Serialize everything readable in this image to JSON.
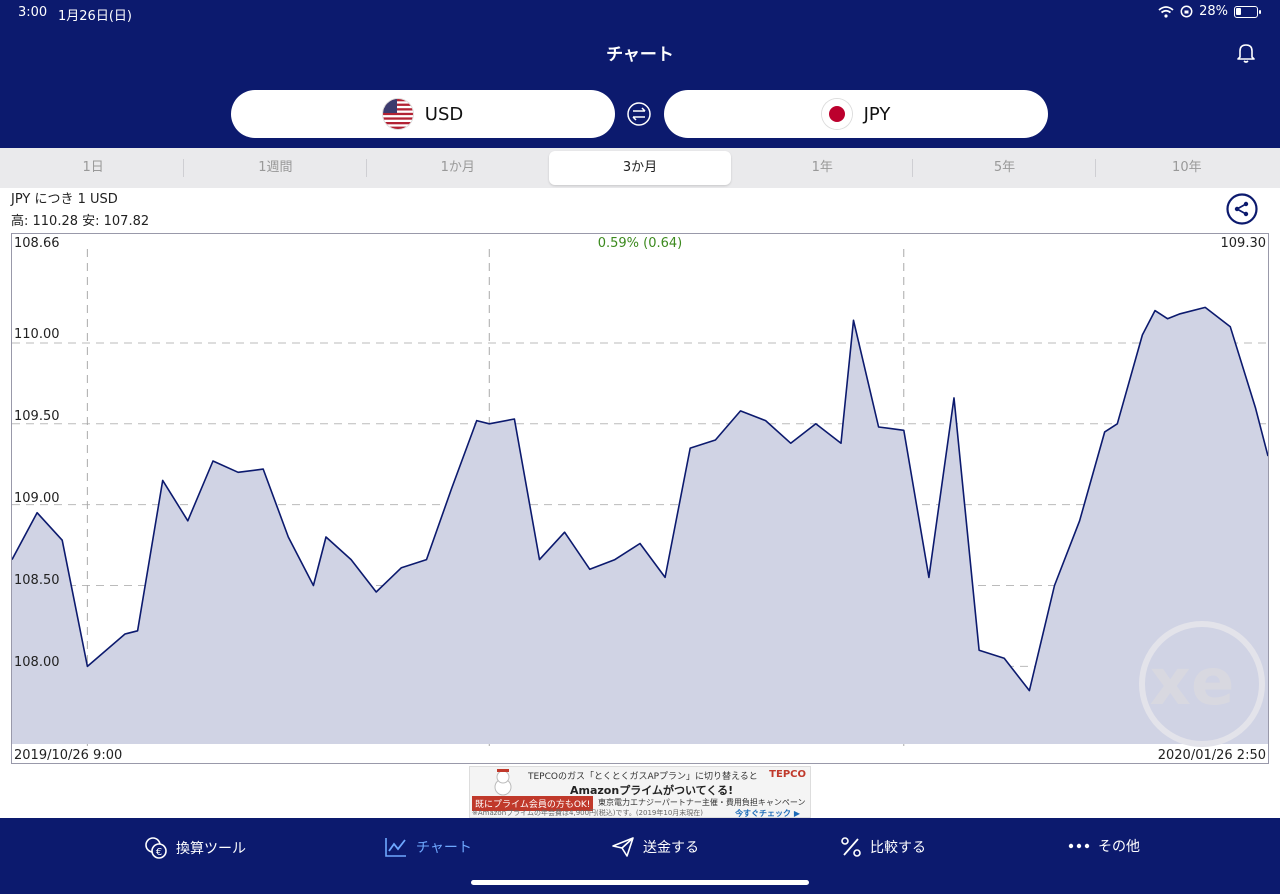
{
  "status": {
    "time": "3:00",
    "date": "1月26日(日)",
    "battery": "28%",
    "battery_level": 0.28
  },
  "nav": {
    "title": "チャート"
  },
  "currency": {
    "from": "USD",
    "to": "JPY"
  },
  "tabs": [
    {
      "label": "1日",
      "active": false
    },
    {
      "label": "1週間",
      "active": false
    },
    {
      "label": "1か月",
      "active": false
    },
    {
      "label": "3か月",
      "active": true
    },
    {
      "label": "1年",
      "active": false
    },
    {
      "label": "5年",
      "active": false
    },
    {
      "label": "10年",
      "active": false
    }
  ],
  "chart_header": {
    "pair": "JPY につき 1 USD",
    "highlow": "高: 110.28  安: 107.82"
  },
  "chart_data": {
    "type": "area",
    "start_value_label": "108.66",
    "end_value_label": "109.30",
    "change_label": "0.59% (0.64)",
    "x_start_label": "2019/10/26 9:00",
    "x_end_label": "2020/01/26 2:50",
    "y_ticks": [
      "110.00",
      "109.50",
      "109.00",
      "108.50",
      "108.00"
    ],
    "ylim": [
      107.52,
      110.55
    ],
    "x": [
      0,
      2,
      4,
      6,
      9,
      10,
      12,
      14,
      16,
      18,
      20,
      22,
      24,
      25,
      27,
      29,
      31,
      33,
      35,
      37,
      38,
      40,
      42,
      44,
      46,
      48,
      50,
      52,
      54,
      56,
      58,
      60,
      62,
      64,
      66,
      67,
      69,
      71,
      73,
      75,
      77,
      79,
      81,
      83,
      85,
      87,
      88,
      90,
      91,
      92,
      93,
      95,
      97,
      99,
      100
    ],
    "values": [
      108.66,
      108.95,
      108.78,
      108.0,
      108.2,
      108.22,
      109.15,
      108.9,
      109.27,
      109.2,
      109.22,
      108.8,
      108.5,
      108.8,
      108.66,
      108.46,
      108.61,
      108.66,
      109.1,
      109.52,
      109.5,
      109.53,
      108.66,
      108.83,
      108.6,
      108.66,
      108.76,
      108.55,
      109.35,
      109.4,
      109.58,
      109.52,
      109.38,
      109.5,
      109.38,
      110.14,
      109.48,
      109.46,
      108.55,
      109.66,
      108.1,
      108.05,
      107.85,
      108.5,
      108.9,
      109.45,
      109.5,
      110.05,
      110.2,
      110.15,
      110.18,
      110.22,
      110.1,
      109.6,
      109.3
    ],
    "vertical_gridlines_at_x": [
      6,
      38,
      71
    ],
    "grid": "dashed"
  },
  "watermark": "xe",
  "ad": {
    "line1": "TEPCOのガス「とくとくガスAPプラン」に切り替えると",
    "line2": "Amazonプライムがついてくる!",
    "line3": "既にプライム会員の方もOK!",
    "line3b": "東京電力エナジーパートナー主催・費用負担キャンペーン",
    "line4": "※Amazonプライムの年会費は4,900円(税込)です。(2019年10月末現在)",
    "button": "今すぐチェック ▶",
    "logo": "TEPCO"
  },
  "bottom_nav": [
    {
      "label": "換算ツール",
      "icon": "currency-convert-icon",
      "active": false
    },
    {
      "label": "チャート",
      "icon": "line-chart-icon",
      "active": true
    },
    {
      "label": "送金する",
      "icon": "send-icon",
      "active": false
    },
    {
      "label": "比較する",
      "icon": "percent-icon",
      "active": false
    },
    {
      "label": "その他",
      "icon": "more-icon",
      "active": false
    }
  ]
}
